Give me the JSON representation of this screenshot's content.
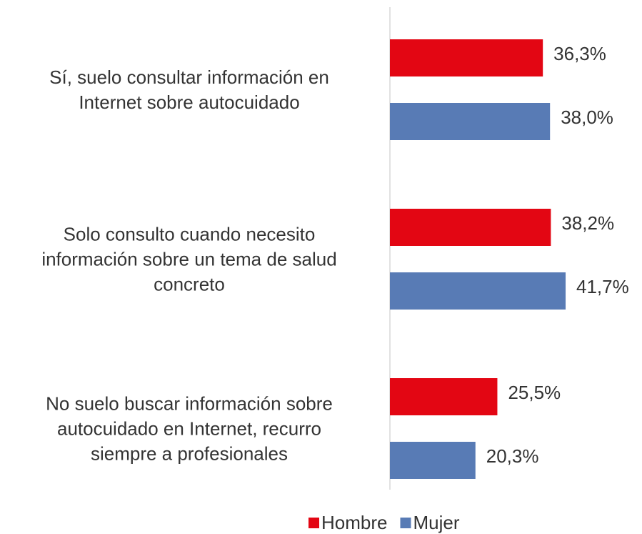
{
  "chart_data": {
    "type": "hbar",
    "categories": [
      "Sí, suelo consultar información en\nInternet sobre autocuidado",
      "Solo consulto cuando necesito\ninformación sobre un tema de salud\nconcreto",
      "No suelo buscar información sobre\nautocuidado en Internet, recurro\nsiempre a profesionales"
    ],
    "series": [
      {
        "name": "Hombre",
        "color": "#e30613",
        "values": [
          36.3,
          38.2,
          25.5
        ],
        "value_labels": [
          "36,3%",
          "38,2%",
          "25,5%"
        ]
      },
      {
        "name": "Mujer",
        "color": "#587bb5",
        "values": [
          38.0,
          41.7,
          20.3
        ],
        "value_labels": [
          "38,0%",
          "41,7%",
          "20,3%"
        ]
      }
    ],
    "legend": "bottom"
  }
}
